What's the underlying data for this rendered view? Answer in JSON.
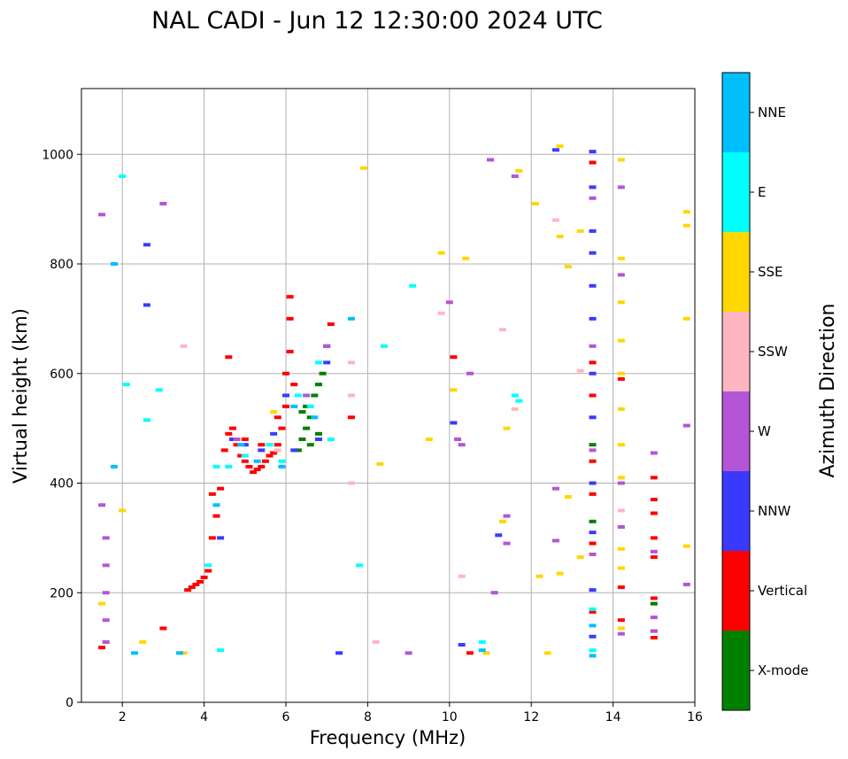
{
  "chart_data": {
    "type": "scatter",
    "title": "NAL CADI - Jun 12 12:30:00 2024 UTC",
    "xlabel": "Frequency (MHz)",
    "ylabel": "Virtual height (km)",
    "xlim": [
      1,
      16
    ],
    "ylim": [
      0,
      1120
    ],
    "xticks": [
      2,
      4,
      6,
      8,
      10,
      12,
      14,
      16
    ],
    "yticks": [
      0,
      200,
      400,
      600,
      800,
      1000
    ],
    "grid": true,
    "colorbar": {
      "title": "Azimuth Direction",
      "categories": [
        {
          "name": "X-mode",
          "color": "#008000"
        },
        {
          "name": "Vertical",
          "color": "#ff0000"
        },
        {
          "name": "NNW",
          "color": "#3a3aff"
        },
        {
          "name": "W",
          "color": "#b455d6"
        },
        {
          "name": "SSW",
          "color": "#ffb6c1"
        },
        {
          "name": "SSE",
          "color": "#ffd700"
        },
        {
          "name": "E",
          "color": "#00ffff"
        },
        {
          "name": "NNE",
          "color": "#00bfff"
        }
      ]
    },
    "series": [
      {
        "name": "Vertical",
        "color": "#ff0000",
        "points": [
          [
            3.6,
            205
          ],
          [
            3.7,
            210
          ],
          [
            3.8,
            215
          ],
          [
            3.9,
            220
          ],
          [
            4.0,
            228
          ],
          [
            4.1,
            240
          ],
          [
            4.2,
            300
          ],
          [
            4.2,
            380
          ],
          [
            4.3,
            340
          ],
          [
            4.4,
            390
          ],
          [
            4.5,
            460
          ],
          [
            4.6,
            490
          ],
          [
            4.7,
            500
          ],
          [
            4.8,
            470
          ],
          [
            4.9,
            450
          ],
          [
            5.0,
            440
          ],
          [
            5.1,
            430
          ],
          [
            5.2,
            420
          ],
          [
            5.3,
            425
          ],
          [
            5.4,
            430
          ],
          [
            5.5,
            440
          ],
          [
            5.6,
            450
          ],
          [
            5.7,
            455
          ],
          [
            5.8,
            470
          ],
          [
            5.9,
            500
          ],
          [
            6.0,
            540
          ],
          [
            6.0,
            600
          ],
          [
            6.1,
            640
          ],
          [
            6.1,
            700
          ],
          [
            6.2,
            580
          ],
          [
            4.6,
            630
          ],
          [
            5.0,
            480
          ],
          [
            5.4,
            470
          ],
          [
            5.8,
            520
          ],
          [
            6.1,
            740
          ],
          [
            1.5,
            100
          ],
          [
            3.0,
            135
          ],
          [
            7.1,
            690
          ],
          [
            7.6,
            520
          ],
          [
            10.1,
            630
          ],
          [
            10.5,
            90
          ],
          [
            13.5,
            985
          ],
          [
            13.5,
            620
          ],
          [
            13.5,
            560
          ],
          [
            13.5,
            440
          ],
          [
            13.5,
            380
          ],
          [
            13.5,
            290
          ],
          [
            13.5,
            165
          ],
          [
            14.2,
            590
          ],
          [
            14.2,
            210
          ],
          [
            14.2,
            150
          ],
          [
            15.0,
            410
          ],
          [
            15.0,
            370
          ],
          [
            15.0,
            345
          ],
          [
            15.0,
            300
          ],
          [
            15.0,
            265
          ],
          [
            15.0,
            190
          ],
          [
            15.0,
            130
          ],
          [
            15.0,
            118
          ]
        ]
      },
      {
        "name": "X-mode",
        "color": "#008000",
        "points": [
          [
            6.3,
            460
          ],
          [
            6.4,
            480
          ],
          [
            6.5,
            500
          ],
          [
            6.5,
            540
          ],
          [
            6.6,
            520
          ],
          [
            6.7,
            560
          ],
          [
            6.8,
            580
          ],
          [
            6.8,
            490
          ],
          [
            6.9,
            600
          ],
          [
            7.0,
            650
          ],
          [
            6.4,
            530
          ],
          [
            6.6,
            470
          ],
          [
            13.5,
            470
          ],
          [
            13.5,
            330
          ],
          [
            15.0,
            180
          ]
        ]
      },
      {
        "name": "NNW",
        "color": "#3a3aff",
        "points": [
          [
            4.4,
            300
          ],
          [
            4.7,
            480
          ],
          [
            5.0,
            470
          ],
          [
            5.4,
            460
          ],
          [
            5.7,
            490
          ],
          [
            6.0,
            560
          ],
          [
            6.2,
            460
          ],
          [
            6.8,
            480
          ],
          [
            7.0,
            620
          ],
          [
            2.6,
            835
          ],
          [
            2.6,
            725
          ],
          [
            7.3,
            90
          ],
          [
            10.1,
            510
          ],
          [
            10.3,
            105
          ],
          [
            11.2,
            305
          ],
          [
            12.6,
            1008
          ],
          [
            13.5,
            1005
          ],
          [
            13.5,
            940
          ],
          [
            13.5,
            860
          ],
          [
            13.5,
            820
          ],
          [
            13.5,
            760
          ],
          [
            13.5,
            700
          ],
          [
            13.5,
            600
          ],
          [
            13.5,
            520
          ],
          [
            13.5,
            400
          ],
          [
            13.5,
            310
          ],
          [
            13.5,
            205
          ],
          [
            13.5,
            120
          ]
        ]
      },
      {
        "name": "W",
        "color": "#b455d6",
        "points": [
          [
            1.5,
            360
          ],
          [
            1.6,
            300
          ],
          [
            1.6,
            250
          ],
          [
            1.6,
            200
          ],
          [
            1.6,
            150
          ],
          [
            1.6,
            110
          ],
          [
            3.0,
            910
          ],
          [
            1.5,
            890
          ],
          [
            4.8,
            480
          ],
          [
            6.5,
            560
          ],
          [
            7.0,
            650
          ],
          [
            9.0,
            90
          ],
          [
            10.0,
            730
          ],
          [
            10.2,
            480
          ],
          [
            10.3,
            470
          ],
          [
            10.5,
            600
          ],
          [
            11.0,
            990
          ],
          [
            11.1,
            200
          ],
          [
            11.4,
            340
          ],
          [
            11.4,
            290
          ],
          [
            11.6,
            960
          ],
          [
            12.6,
            390
          ],
          [
            12.6,
            295
          ],
          [
            13.5,
            920
          ],
          [
            13.5,
            650
          ],
          [
            13.5,
            460
          ],
          [
            13.5,
            270
          ],
          [
            14.2,
            940
          ],
          [
            14.2,
            780
          ],
          [
            14.2,
            400
          ],
          [
            14.2,
            320
          ],
          [
            14.2,
            125
          ],
          [
            15.0,
            455
          ],
          [
            15.0,
            275
          ],
          [
            15.0,
            155
          ],
          [
            15.0,
            130
          ],
          [
            15.8,
            505
          ],
          [
            15.8,
            215
          ]
        ]
      },
      {
        "name": "SSW",
        "color": "#ffb6c1",
        "points": [
          [
            3.5,
            650
          ],
          [
            5.8,
            460
          ],
          [
            7.6,
            620
          ],
          [
            7.6,
            560
          ],
          [
            7.6,
            400
          ],
          [
            8.2,
            110
          ],
          [
            9.8,
            710
          ],
          [
            10.3,
            230
          ],
          [
            11.3,
            680
          ],
          [
            11.6,
            535
          ],
          [
            12.6,
            880
          ],
          [
            13.2,
            605
          ],
          [
            14.2,
            350
          ]
        ]
      },
      {
        "name": "SSE",
        "color": "#ffd700",
        "points": [
          [
            1.5,
            180
          ],
          [
            2.0,
            350
          ],
          [
            2.5,
            110
          ],
          [
            3.5,
            90
          ],
          [
            5.7,
            530
          ],
          [
            7.9,
            975
          ],
          [
            8.3,
            435
          ],
          [
            9.5,
            480
          ],
          [
            9.8,
            820
          ],
          [
            10.1,
            570
          ],
          [
            10.4,
            810
          ],
          [
            10.9,
            90
          ],
          [
            11.3,
            330
          ],
          [
            11.4,
            500
          ],
          [
            11.7,
            970
          ],
          [
            12.1,
            910
          ],
          [
            12.2,
            230
          ],
          [
            12.4,
            90
          ],
          [
            12.7,
            1015
          ],
          [
            12.7,
            850
          ],
          [
            12.7,
            235
          ],
          [
            12.9,
            375
          ],
          [
            12.9,
            795
          ],
          [
            13.2,
            265
          ],
          [
            13.2,
            860
          ],
          [
            14.2,
            990
          ],
          [
            14.2,
            810
          ],
          [
            14.2,
            730
          ],
          [
            14.2,
            660
          ],
          [
            14.2,
            600
          ],
          [
            14.2,
            535
          ],
          [
            14.2,
            470
          ],
          [
            14.2,
            410
          ],
          [
            14.2,
            280
          ],
          [
            14.2,
            245
          ],
          [
            14.2,
            135
          ],
          [
            15.8,
            895
          ],
          [
            15.8,
            870
          ],
          [
            15.8,
            700
          ],
          [
            15.8,
            285
          ]
        ]
      },
      {
        "name": "E",
        "color": "#00ffff",
        "points": [
          [
            2.0,
            960
          ],
          [
            2.1,
            580
          ],
          [
            2.6,
            515
          ],
          [
            2.9,
            570
          ],
          [
            4.1,
            250
          ],
          [
            4.3,
            430
          ],
          [
            4.6,
            430
          ],
          [
            5.0,
            450
          ],
          [
            5.6,
            470
          ],
          [
            5.9,
            440
          ],
          [
            6.3,
            560
          ],
          [
            6.6,
            540
          ],
          [
            6.8,
            620
          ],
          [
            7.1,
            480
          ],
          [
            7.8,
            250
          ],
          [
            8.4,
            650
          ],
          [
            9.1,
            760
          ],
          [
            10.8,
            110
          ],
          [
            11.6,
            560
          ],
          [
            11.7,
            550
          ],
          [
            13.5,
            170
          ],
          [
            13.5,
            95
          ],
          [
            4.4,
            95
          ]
        ]
      },
      {
        "name": "NNE",
        "color": "#00bfff",
        "points": [
          [
            1.8,
            800
          ],
          [
            1.8,
            430
          ],
          [
            2.3,
            90
          ],
          [
            3.4,
            90
          ],
          [
            4.3,
            360
          ],
          [
            4.9,
            470
          ],
          [
            5.3,
            440
          ],
          [
            5.9,
            430
          ],
          [
            6.2,
            540
          ],
          [
            6.7,
            520
          ],
          [
            7.6,
            700
          ],
          [
            10.8,
            95
          ],
          [
            13.5,
            140
          ],
          [
            13.5,
            85
          ]
        ]
      }
    ]
  }
}
